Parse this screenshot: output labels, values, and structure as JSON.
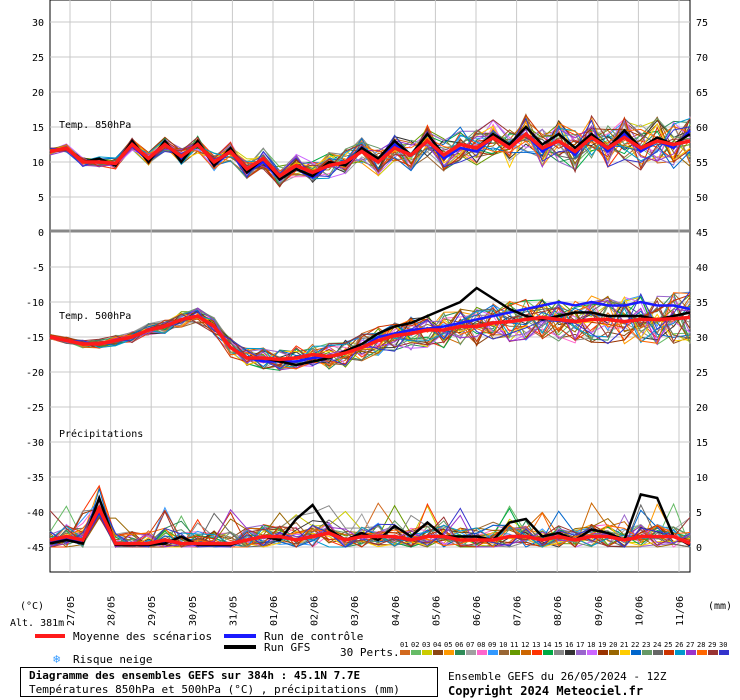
{
  "chart_data": {
    "type": "line",
    "title": "Diagramme des ensembles GEFS sur 384h : 45.1N 7.7E",
    "subtitle": "Températures 850hPa et 500hPa (°C) , précipitations (mm)",
    "x_dates": [
      "27/05",
      "28/05",
      "29/05",
      "30/05",
      "31/05",
      "01/06",
      "02/06",
      "03/06",
      "04/06",
      "05/06",
      "06/06",
      "07/06",
      "08/06",
      "09/06",
      "10/06",
      "11/06"
    ],
    "left_unit": "(°C)",
    "right_unit": "(mm)",
    "altitude_label": "Alt. 381m",
    "panels": [
      {
        "label": "Temp. 850hPa",
        "left_ticks": [
          "30",
          "25",
          "20",
          "15",
          "10",
          "5",
          "0"
        ],
        "right_ticks": [
          "75",
          "70",
          "65",
          "60",
          "55",
          "50"
        ],
        "ylim": [
          0,
          30
        ],
        "ensemble_mean": [
          11.5,
          12,
          10,
          10,
          9.8,
          12.5,
          10.5,
          12.5,
          10.8,
          12.5,
          10,
          11.5,
          9,
          10.5,
          8,
          9.5,
          8.5,
          9.5,
          10,
          11.5,
          10,
          12,
          11,
          13,
          11,
          12.5,
          12,
          13.5,
          12,
          14,
          12,
          13,
          11.5,
          13.5,
          12,
          13.5,
          12,
          13,
          12.5,
          13
        ],
        "gfs_run": [
          11.5,
          12,
          10,
          10.5,
          9.5,
          13,
          10,
          13,
          10,
          13,
          9.5,
          12,
          8.5,
          10.5,
          7.5,
          9,
          8,
          10,
          9.5,
          12,
          10.5,
          13,
          11,
          14,
          11,
          12.5,
          12,
          14,
          12.5,
          15,
          12.5,
          14,
          12,
          14,
          12,
          14.5,
          12,
          13.5,
          12.5,
          14
        ],
        "control_run": [
          11.5,
          12,
          10,
          10,
          9.8,
          12.3,
          10.2,
          12.5,
          10.5,
          12.8,
          9.5,
          11.5,
          8.5,
          10,
          7.5,
          9,
          7.8,
          9.5,
          10,
          11.5,
          10,
          12.5,
          11,
          13,
          10.5,
          12,
          11.5,
          13.5,
          12,
          14,
          11.5,
          13,
          11,
          14,
          11.5,
          14,
          11.5,
          13,
          12,
          14.5
        ]
      },
      {
        "label": "Temp. 500hPa",
        "left_ticks": [
          "-5",
          "-10",
          "-15",
          "-20",
          "-25",
          "-30",
          "-35",
          "-40",
          "-45"
        ],
        "right_ticks": [
          "45",
          "40",
          "35",
          "30",
          "25",
          "20",
          "15",
          "10",
          "5",
          "0"
        ],
        "ylim": [
          -45,
          -5
        ],
        "ensemble_mean": [
          -15,
          -15.5,
          -16,
          -16,
          -15.5,
          -15,
          -14,
          -13.5,
          -12.5,
          -12,
          -13.5,
          -16.5,
          -18,
          -18,
          -18.2,
          -18,
          -17.5,
          -17.8,
          -17.3,
          -16.5,
          -15.5,
          -14.8,
          -14.5,
          -14,
          -14,
          -13.5,
          -13.5,
          -13,
          -12.8,
          -12.5,
          -12.2,
          -12.5,
          -12.8,
          -12.5,
          -12.5,
          -12.8,
          -12.5,
          -12.5,
          -12.4,
          -12.2
        ],
        "gfs_run": [
          -15,
          -15.5,
          -16,
          -16,
          -15.5,
          -15,
          -14,
          -13.5,
          -12.5,
          -12,
          -13.5,
          -16.5,
          -18,
          -18,
          -18.5,
          -19,
          -18.5,
          -18,
          -17,
          -16,
          -14.5,
          -13.5,
          -13,
          -12,
          -11,
          -10,
          -8,
          -9.5,
          -11,
          -12,
          -12.5,
          -12,
          -11.5,
          -11.5,
          -12,
          -12,
          -12,
          -12.5,
          -12,
          -11.5
        ],
        "control_run": [
          -15,
          -15.5,
          -16,
          -16,
          -15.5,
          -15,
          -14,
          -13.5,
          -12.5,
          -12,
          -13.5,
          -16.5,
          -18,
          -18.5,
          -18.5,
          -18.5,
          -18,
          -17.8,
          -17.3,
          -16.5,
          -15,
          -14.5,
          -14,
          -13.8,
          -13.5,
          -13,
          -12.5,
          -12,
          -11.5,
          -11,
          -10.5,
          -10,
          -10.5,
          -10,
          -10.5,
          -10.5,
          -10,
          -10.5,
          -10.5,
          -11
        ]
      },
      {
        "label": "Précipitations",
        "ylim_right": [
          0,
          15
        ],
        "ensemble_mean": [
          1,
          1.5,
          1,
          5.5,
          0.5,
          0.5,
          0.5,
          1,
          0.5,
          0.5,
          0.5,
          0.5,
          1,
          1.5,
          1.5,
          1,
          1.5,
          2,
          1,
          1.5,
          1.5,
          1.5,
          1,
          1.5,
          1.5,
          1,
          1,
          1,
          1.5,
          1.5,
          1,
          1.5,
          1,
          1.5,
          1.5,
          1,
          1.5,
          1.5,
          1.5,
          0.5
        ],
        "gfs_run": [
          0.5,
          1,
          0.5,
          7,
          0.3,
          0.3,
          0.3,
          0.5,
          1.5,
          0.3,
          0.3,
          0.3,
          1,
          1.5,
          1,
          4,
          6,
          2.5,
          1,
          2,
          1,
          3,
          1.5,
          3.5,
          1.5,
          1.5,
          1.5,
          1,
          3.5,
          4,
          1.5,
          2,
          1,
          2.5,
          2,
          1,
          7.5,
          7,
          1.5,
          0.3
        ],
        "control_run": [
          0.8,
          1.2,
          0.8,
          5,
          0.3,
          0.3,
          0.3,
          0.8,
          0.5,
          0.3,
          0.3,
          0.5,
          1,
          1.5,
          1.5,
          1,
          1.5,
          2,
          1,
          1.5,
          1.5,
          1.5,
          1,
          1.5,
          1.5,
          1,
          1,
          1,
          1.5,
          1.5,
          1,
          1.5,
          1,
          1.5,
          1.5,
          1,
          1.5,
          1.5,
          1.5,
          0.3
        ]
      }
    ],
    "legend": {
      "mean": "Moyenne des scénarios",
      "control": "Run de contrôle",
      "gfs": "Run GFS",
      "snow": "Risque neige",
      "perts_label": "30 Perts.",
      "perts": [
        "01",
        "02",
        "03",
        "04",
        "05",
        "06",
        "07",
        "08",
        "09",
        "10",
        "11",
        "12",
        "13",
        "14",
        "15",
        "16",
        "17",
        "18",
        "19",
        "20",
        "21",
        "22",
        "23",
        "24",
        "25",
        "26",
        "27",
        "28",
        "29",
        "30"
      ],
      "pert_colors": [
        "#d2691e",
        "#66bb66",
        "#cccc00",
        "#8b4513",
        "#ff9900",
        "#2e8b57",
        "#a0a0a0",
        "#ff66cc",
        "#3399ff",
        "#996633",
        "#669900",
        "#cc6600",
        "#ff3300",
        "#00aa44",
        "#888888",
        "#333333",
        "#9966cc",
        "#cc66ff",
        "#993300",
        "#996600",
        "#ffcc00",
        "#0066cc",
        "#669966",
        "#666666",
        "#cc3300",
        "#0099cc",
        "#9933cc",
        "#ff6600",
        "#993333",
        "#3333cc"
      ]
    },
    "colors": {
      "mean": "#ff1a1a",
      "control": "#1a1aff",
      "gfs": "#000000",
      "grid": "#c8c8c8",
      "snow": "#3399ff"
    },
    "run_info": "Ensemble GEFS du 26/05/2024 - 12Z",
    "copyright": "Copyright 2024 Meteociel.fr"
  }
}
